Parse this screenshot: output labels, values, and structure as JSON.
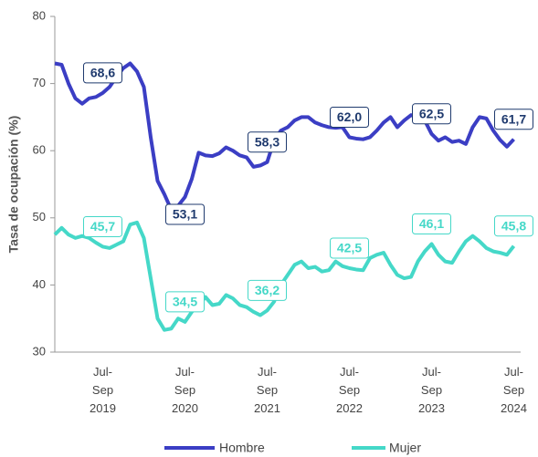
{
  "chart_data": {
    "type": "line",
    "y_label": "Tasa de ocupación (%)",
    "categories": [
      null,
      null,
      null,
      null,
      null,
      null,
      null,
      "Jul-\nSep\n2019",
      null,
      null,
      null,
      null,
      null,
      null,
      null,
      null,
      null,
      null,
      null,
      "Jul-\nSep\n2020",
      null,
      null,
      null,
      null,
      null,
      null,
      null,
      null,
      null,
      null,
      null,
      "Jul-\nSep\n2021",
      null,
      null,
      null,
      null,
      null,
      null,
      null,
      null,
      null,
      null,
      null,
      "Jul-\nSep\n2022",
      null,
      null,
      null,
      null,
      null,
      null,
      null,
      null,
      null,
      null,
      null,
      "Jul-\nSep\n2023",
      null,
      null,
      null,
      null,
      null,
      null,
      null,
      null,
      null,
      null,
      null,
      "Jul-\nSep\n2024"
    ],
    "series": [
      {
        "name": "Hombre",
        "color": "#3b3ec4",
        "values": [
          73.0,
          72.8,
          70.0,
          67.8,
          67.0,
          67.8,
          68.0,
          68.6,
          69.5,
          71.0,
          72.3,
          73.0,
          71.8,
          69.5,
          62.0,
          55.5,
          53.5,
          51.2,
          51.8,
          53.1,
          55.8,
          59.7,
          59.3,
          59.2,
          59.6,
          60.5,
          60.0,
          59.3,
          59.0,
          57.6,
          57.8,
          58.3,
          61.5,
          63.0,
          63.5,
          64.5,
          65.0,
          65.0,
          64.2,
          63.8,
          63.5,
          63.4,
          63.5,
          62.0,
          61.8,
          61.7,
          62.0,
          63.0,
          64.2,
          65.0,
          63.5,
          64.5,
          65.3,
          65.0,
          64.5,
          62.5,
          61.5,
          62.0,
          61.3,
          61.5,
          61.0,
          63.5,
          65.0,
          64.8,
          63.0,
          61.6,
          60.6,
          61.7
        ],
        "value_labels": [
          null,
          null,
          null,
          null,
          null,
          null,
          null,
          "68,6",
          null,
          null,
          null,
          null,
          null,
          null,
          null,
          null,
          null,
          null,
          null,
          "53,1",
          null,
          null,
          null,
          null,
          null,
          null,
          null,
          null,
          null,
          null,
          null,
          "58,3",
          null,
          null,
          null,
          null,
          null,
          null,
          null,
          null,
          null,
          null,
          null,
          "62,0",
          null,
          null,
          null,
          null,
          null,
          null,
          null,
          null,
          null,
          null,
          null,
          "62,5",
          null,
          null,
          null,
          null,
          null,
          null,
          null,
          null,
          null,
          null,
          null,
          "61,7"
        ]
      },
      {
        "name": "Mujer",
        "color": "#45d8c8",
        "values": [
          47.5,
          48.5,
          47.5,
          47.0,
          47.3,
          47.0,
          46.3,
          45.7,
          45.5,
          46.0,
          46.5,
          49.0,
          49.3,
          47.0,
          41.0,
          35.0,
          33.3,
          33.5,
          35.0,
          34.5,
          36.0,
          37.0,
          38.2,
          37.0,
          37.2,
          38.5,
          38.0,
          37.0,
          36.7,
          36.0,
          35.5,
          36.2,
          37.5,
          40.0,
          41.5,
          43.0,
          43.5,
          42.5,
          42.7,
          42.0,
          42.2,
          43.5,
          42.8,
          42.5,
          42.3,
          42.2,
          44.0,
          44.5,
          44.8,
          43.0,
          41.5,
          41.0,
          41.2,
          43.5,
          45.0,
          46.1,
          44.5,
          43.5,
          43.3,
          45.0,
          46.5,
          47.3,
          46.5,
          45.5,
          45.0,
          44.8,
          44.5,
          45.8
        ],
        "value_labels": [
          null,
          null,
          null,
          null,
          null,
          null,
          null,
          "45,7",
          null,
          null,
          null,
          null,
          null,
          null,
          null,
          null,
          null,
          null,
          null,
          "34,5",
          null,
          null,
          null,
          null,
          null,
          null,
          null,
          null,
          null,
          null,
          null,
          "36,2",
          null,
          null,
          null,
          null,
          null,
          null,
          null,
          null,
          null,
          null,
          null,
          "42,5",
          null,
          null,
          null,
          null,
          null,
          null,
          null,
          null,
          null,
          null,
          null,
          "46,1",
          null,
          null,
          null,
          null,
          null,
          null,
          null,
          null,
          null,
          null,
          null,
          "45,8"
        ]
      }
    ],
    "ylim": [
      30,
      80
    ],
    "yticks": [
      30,
      40,
      50,
      60,
      70,
      80
    ],
    "grid": false,
    "legend": "bottom"
  }
}
